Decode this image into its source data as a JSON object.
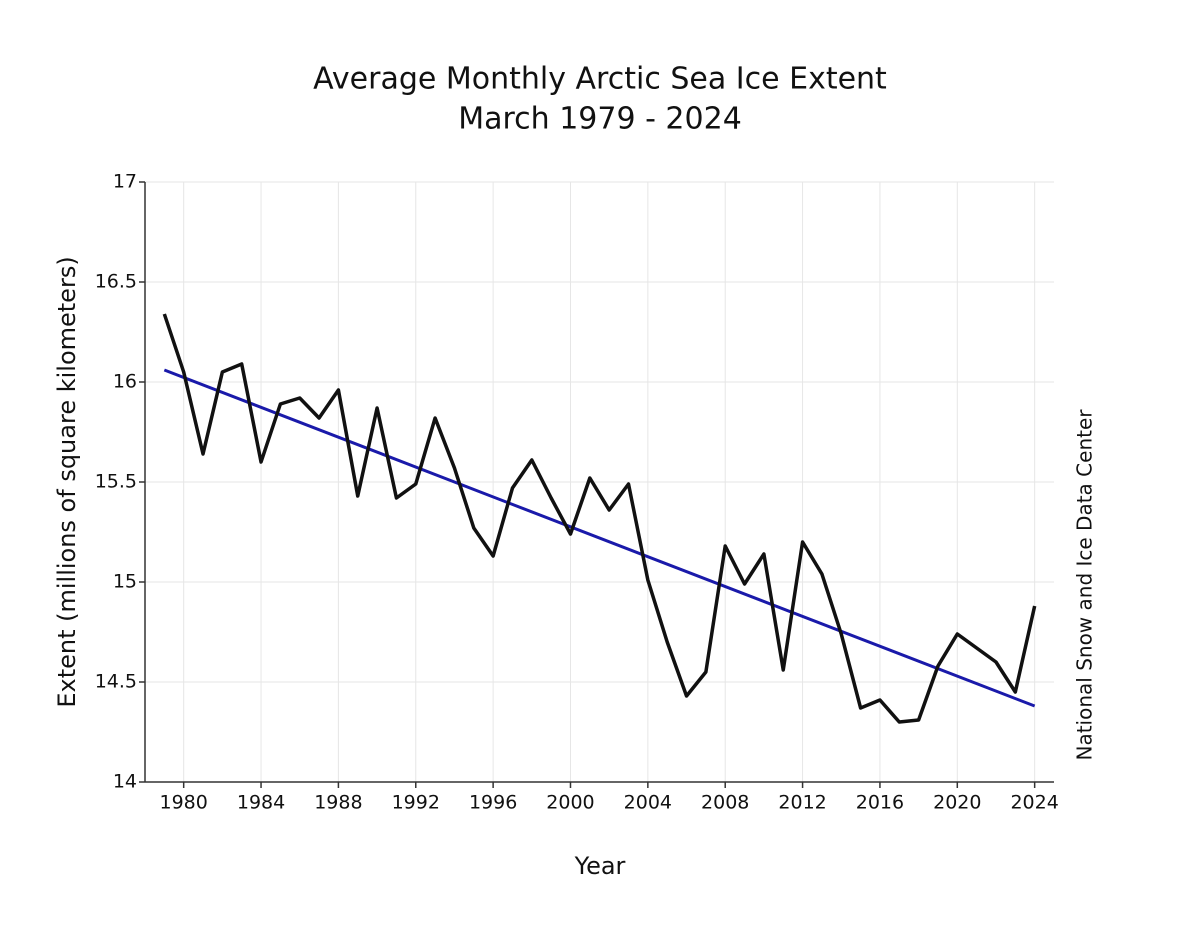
{
  "chart_data": {
    "type": "line",
    "title": "Average Monthly Arctic Sea Ice Extent",
    "subtitle": "March 1979 - 2024",
    "x_label": "Year",
    "y_label": "Extent (millions of square kilometers)",
    "source": "National Snow and Ice Data Center",
    "x": [
      1979,
      1980,
      1981,
      1982,
      1983,
      1984,
      1985,
      1986,
      1987,
      1988,
      1989,
      1990,
      1991,
      1992,
      1993,
      1994,
      1995,
      1996,
      1997,
      1998,
      1999,
      2000,
      2001,
      2002,
      2003,
      2004,
      2005,
      2006,
      2007,
      2008,
      2009,
      2010,
      2011,
      2012,
      2013,
      2014,
      2015,
      2016,
      2017,
      2018,
      2019,
      2020,
      2021,
      2022,
      2023,
      2024
    ],
    "series": [
      {
        "color": "#111111",
        "values": [
          16.34,
          16.05,
          15.64,
          16.05,
          16.09,
          15.6,
          15.89,
          15.92,
          15.82,
          15.96,
          15.43,
          15.87,
          15.42,
          15.49,
          15.82,
          15.57,
          15.27,
          15.13,
          15.47,
          15.61,
          15.42,
          15.24,
          15.52,
          15.36,
          15.49,
          15.01,
          14.7,
          14.43,
          14.55,
          15.18,
          14.99,
          15.14,
          14.56,
          15.2,
          15.04,
          14.74,
          14.37,
          14.41,
          14.3,
          14.31,
          14.58,
          14.74,
          14.67,
          14.6,
          14.45,
          14.88
        ]
      }
    ],
    "trend": {
      "color": "#1a1aaa",
      "x": [
        1979,
        2024
      ],
      "values": [
        16.06,
        14.38
      ]
    },
    "xlim": [
      1978,
      2025
    ],
    "xticks": [
      1980,
      1984,
      1988,
      1992,
      1996,
      2000,
      2004,
      2008,
      2012,
      2016,
      2020,
      2024
    ],
    "ylim": [
      14,
      17
    ],
    "yticks": [
      14,
      14.5,
      15,
      15.5,
      16,
      16.5,
      17
    ],
    "grid": true
  }
}
